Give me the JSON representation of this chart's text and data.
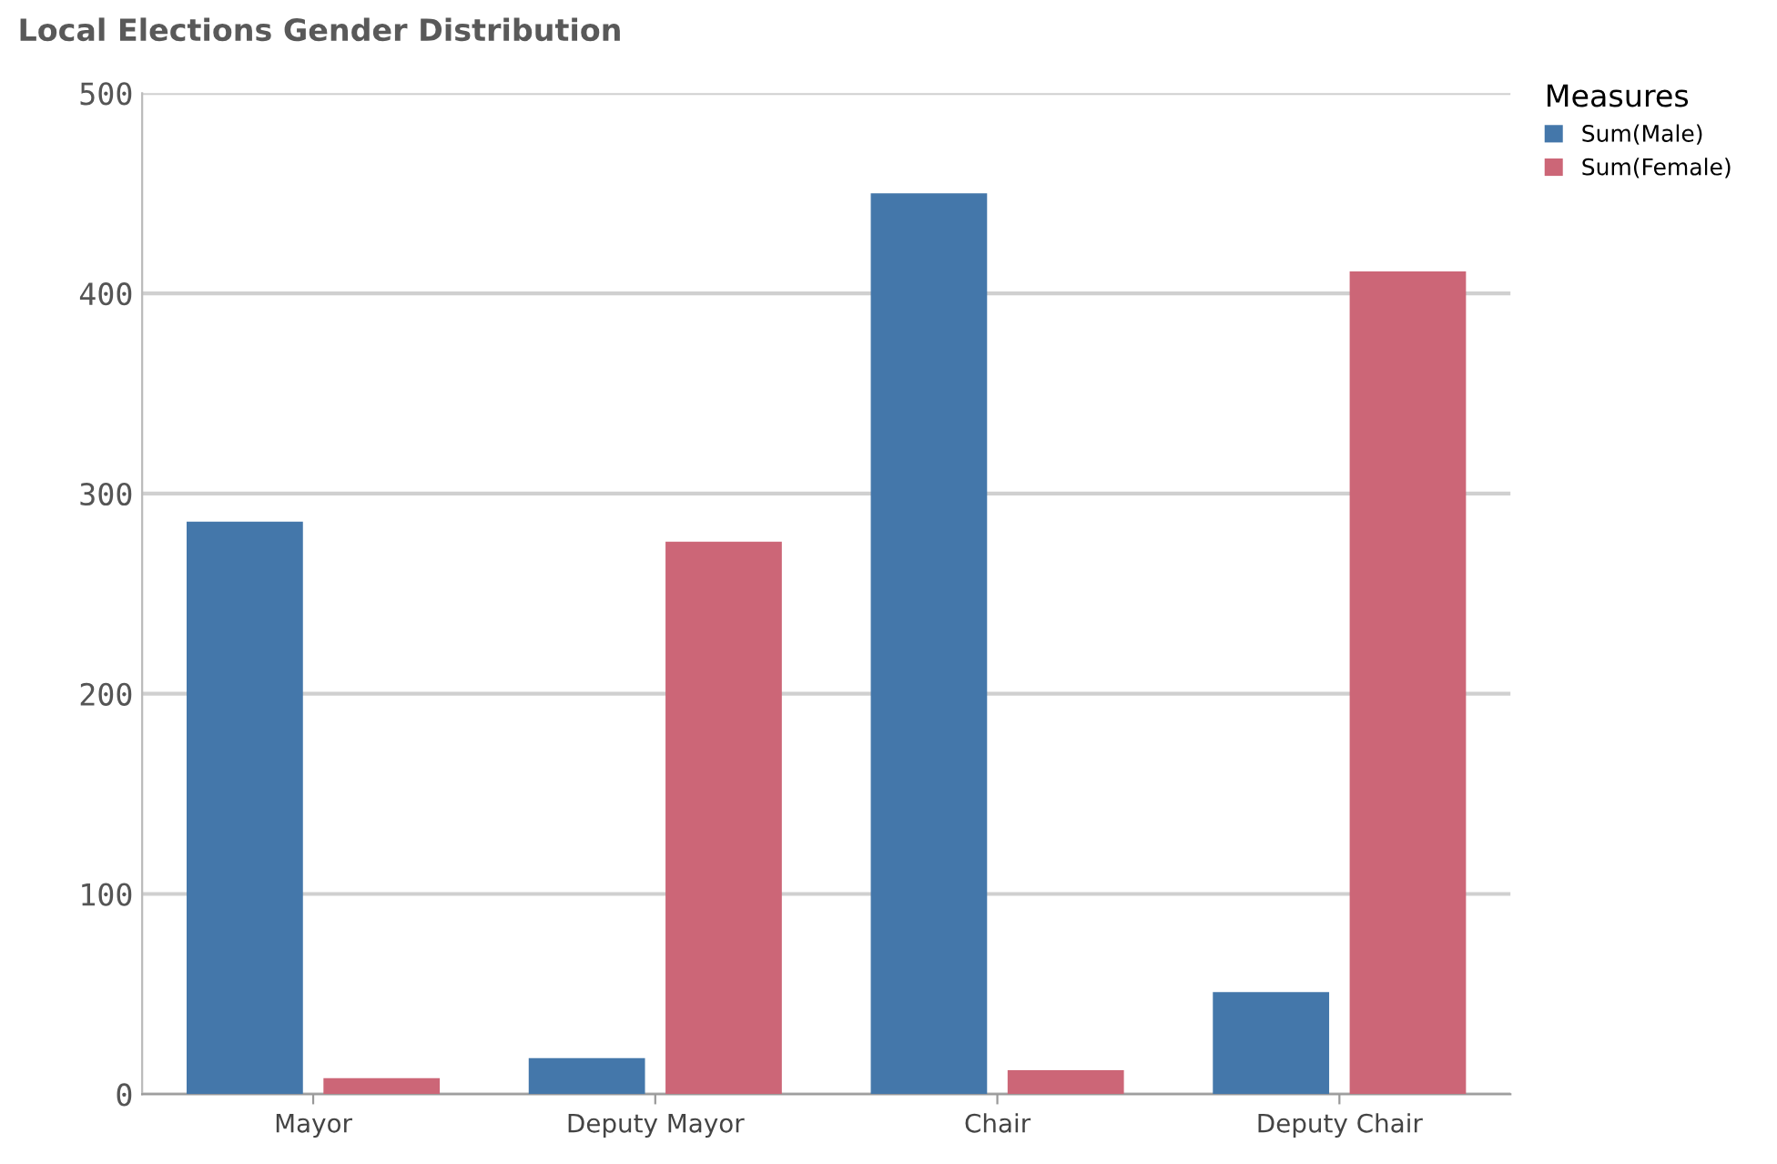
{
  "chart_data": {
    "type": "bar",
    "title": "Local Elections Gender Distribution",
    "categories": [
      "Mayor",
      "Deputy Mayor",
      "Chair",
      "Deputy Chair"
    ],
    "series": [
      {
        "name": "Sum(Male)",
        "color": "#4477aa",
        "values": [
          286,
          18,
          450,
          51
        ]
      },
      {
        "name": "Sum(Female)",
        "color": "#cc6677",
        "values": [
          8,
          276,
          12,
          411
        ]
      }
    ],
    "legend_title": "Measures",
    "legend": "top right",
    "ylim": [
      0,
      500
    ],
    "yticks": [
      0,
      100,
      200,
      300,
      400,
      500
    ],
    "grid": "y"
  }
}
